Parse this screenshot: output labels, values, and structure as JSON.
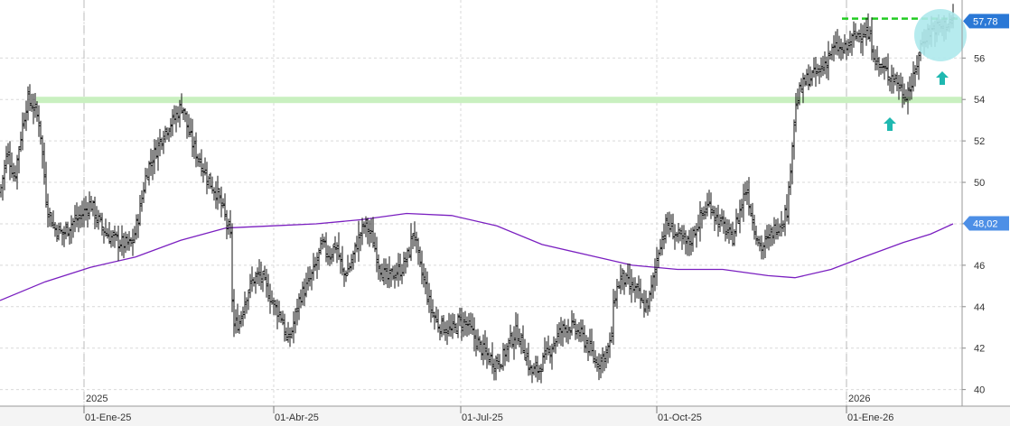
{
  "chart_data": {
    "type": "bar",
    "style": "ohlc",
    "ylim": [
      39.2,
      58.8
    ],
    "y_ticks": [
      "40",
      "42",
      "44",
      "46",
      "48",
      "50",
      "52",
      "54",
      "56"
    ],
    "x_year_labels": [
      "2025",
      "2026"
    ],
    "x_month_labels": [
      "01-Ene-25",
      "01-Abr-25",
      "01-Jul-25",
      "01-Oct-25",
      "01-Ene-26"
    ],
    "last_price": "57,78",
    "ma_last": "48,02",
    "support_level": 54,
    "resistance_level": 57.9,
    "price_anchors": [
      [
        0,
        49.5
      ],
      [
        8,
        51.5
      ],
      [
        16,
        50.2
      ],
      [
        22,
        52.0
      ],
      [
        30,
        54.0
      ],
      [
        38,
        53.6
      ],
      [
        44,
        52.8
      ],
      [
        52,
        48.8
      ],
      [
        60,
        47.8
      ],
      [
        70,
        47.5
      ],
      [
        78,
        48.0
      ],
      [
        88,
        48.3
      ],
      [
        100,
        49.0
      ],
      [
        108,
        48.2
      ],
      [
        118,
        47.5
      ],
      [
        128,
        47.2
      ],
      [
        138,
        47.0
      ],
      [
        146,
        47.0
      ],
      [
        154,
        48.5
      ],
      [
        162,
        50.5
      ],
      [
        172,
        51.5
      ],
      [
        182,
        52.5
      ],
      [
        192,
        53.0
      ],
      [
        202,
        53.8
      ],
      [
        208,
        52.5
      ],
      [
        216,
        51.5
      ],
      [
        224,
        50.8
      ],
      [
        232,
        50.0
      ],
      [
        240,
        49.5
      ],
      [
        248,
        48.5
      ],
      [
        255,
        47.3
      ],
      [
        258,
        43.0
      ],
      [
        265,
        43.3
      ],
      [
        272,
        44.5
      ],
      [
        280,
        45.3
      ],
      [
        288,
        45.5
      ],
      [
        296,
        44.8
      ],
      [
        304,
        44.0
      ],
      [
        312,
        43.5
      ],
      [
        318,
        42.2
      ],
      [
        324,
        43.0
      ],
      [
        332,
        44.5
      ],
      [
        340,
        45.0
      ],
      [
        348,
        45.8
      ],
      [
        356,
        47.0
      ],
      [
        364,
        46.5
      ],
      [
        372,
        47.0
      ],
      [
        380,
        45.5
      ],
      [
        388,
        46.0
      ],
      [
        396,
        47.2
      ],
      [
        404,
        48.0
      ],
      [
        412,
        47.3
      ],
      [
        420,
        46.0
      ],
      [
        428,
        45.3
      ],
      [
        436,
        45.6
      ],
      [
        444,
        45.8
      ],
      [
        452,
        46.5
      ],
      [
        458,
        47.8
      ],
      [
        464,
        46.0
      ],
      [
        470,
        45.2
      ],
      [
        476,
        44.0
      ],
      [
        484,
        43.2
      ],
      [
        492,
        43.0
      ],
      [
        500,
        42.8
      ],
      [
        508,
        43.3
      ],
      [
        516,
        43.2
      ],
      [
        524,
        42.6
      ],
      [
        532,
        42.0
      ],
      [
        540,
        41.6
      ],
      [
        548,
        41.3
      ],
      [
        556,
        41.5
      ],
      [
        564,
        42.3
      ],
      [
        572,
        42.8
      ],
      [
        580,
        42.0
      ],
      [
        588,
        40.8
      ],
      [
        596,
        41.0
      ],
      [
        604,
        41.6
      ],
      [
        612,
        42.2
      ],
      [
        620,
        42.8
      ],
      [
        628,
        43.1
      ],
      [
        636,
        42.9
      ],
      [
        644,
        42.6
      ],
      [
        652,
        42.0
      ],
      [
        660,
        41.3
      ],
      [
        668,
        41.6
      ],
      [
        676,
        42.2
      ],
      [
        680,
        44.5
      ],
      [
        688,
        45.5
      ],
      [
        696,
        45.0
      ],
      [
        704,
        44.8
      ],
      [
        712,
        44.0
      ],
      [
        718,
        44.2
      ],
      [
        724,
        45.5
      ],
      [
        730,
        47.0
      ],
      [
        738,
        48.0
      ],
      [
        746,
        47.6
      ],
      [
        754,
        47.2
      ],
      [
        762,
        47.0
      ],
      [
        770,
        47.8
      ],
      [
        778,
        48.5
      ],
      [
        786,
        49.0
      ],
      [
        794,
        48.2
      ],
      [
        802,
        47.8
      ],
      [
        810,
        47.2
      ],
      [
        818,
        48.5
      ],
      [
        826,
        49.8
      ],
      [
        834,
        48.0
      ],
      [
        842,
        46.8
      ],
      [
        850,
        47.2
      ],
      [
        858,
        47.8
      ],
      [
        866,
        48.2
      ],
      [
        872,
        48.8
      ],
      [
        876,
        51.5
      ],
      [
        880,
        53.5
      ],
      [
        886,
        54.5
      ],
      [
        894,
        55.0
      ],
      [
        902,
        55.2
      ],
      [
        910,
        55.5
      ],
      [
        918,
        56.2
      ],
      [
        926,
        56.5
      ],
      [
        934,
        56.3
      ],
      [
        942,
        56.8
      ],
      [
        950,
        57.2
      ],
      [
        958,
        57.3
      ],
      [
        964,
        56.8
      ],
      [
        970,
        55.8
      ],
      [
        978,
        55.4
      ],
      [
        986,
        55.2
      ],
      [
        994,
        54.8
      ],
      [
        1000,
        54.2
      ],
      [
        1006,
        54.5
      ],
      [
        1012,
        55.0
      ],
      [
        1018,
        56.5
      ],
      [
        1026,
        57.2
      ],
      [
        1034,
        57.4
      ],
      [
        1042,
        57.5
      ],
      [
        1050,
        57.7
      ],
      [
        1056,
        57.8
      ]
    ],
    "moving_average": [
      [
        0,
        44.3
      ],
      [
        50,
        45.2
      ],
      [
        100,
        45.9
      ],
      [
        150,
        46.4
      ],
      [
        200,
        47.2
      ],
      [
        250,
        47.8
      ],
      [
        300,
        47.9
      ],
      [
        350,
        48.0
      ],
      [
        400,
        48.2
      ],
      [
        450,
        48.5
      ],
      [
        500,
        48.4
      ],
      [
        550,
        47.9
      ],
      [
        600,
        47.0
      ],
      [
        650,
        46.5
      ],
      [
        700,
        46.0
      ],
      [
        750,
        45.8
      ],
      [
        800,
        45.8
      ],
      [
        850,
        45.5
      ],
      [
        880,
        45.4
      ],
      [
        920,
        45.8
      ],
      [
        950,
        46.3
      ],
      [
        1000,
        47.1
      ],
      [
        1030,
        47.5
      ],
      [
        1055,
        48.0
      ]
    ]
  }
}
